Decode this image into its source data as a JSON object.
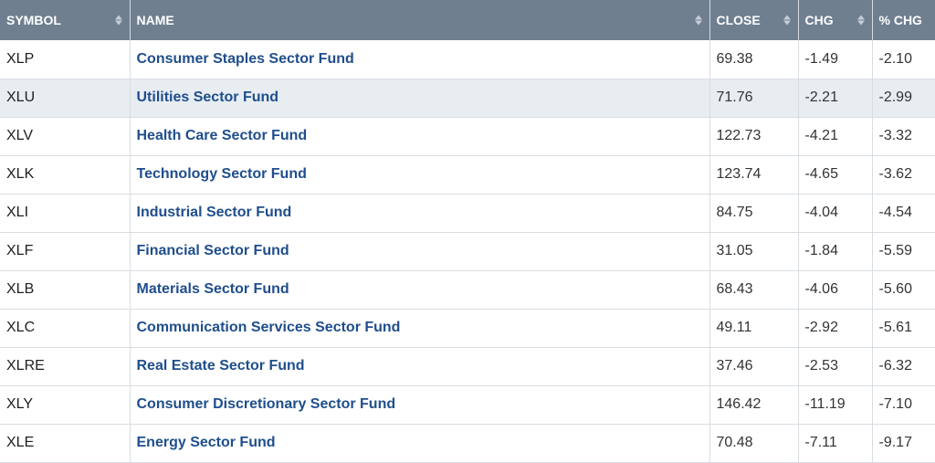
{
  "header": {
    "symbol": "SYMBOL",
    "name": "NAME",
    "close": "CLOSE",
    "chg": "CHG",
    "pct_chg": "% CHG"
  },
  "rows": [
    {
      "symbol": "XLP",
      "name": "Consumer Staples Sector Fund",
      "close": "69.38",
      "chg": "-1.49",
      "pct_chg": "-2.10"
    },
    {
      "symbol": "XLU",
      "name": "Utilities Sector Fund",
      "close": "71.76",
      "chg": "-2.21",
      "pct_chg": "-2.99"
    },
    {
      "symbol": "XLV",
      "name": "Health Care Sector Fund",
      "close": "122.73",
      "chg": "-4.21",
      "pct_chg": "-3.32"
    },
    {
      "symbol": "XLK",
      "name": "Technology Sector Fund",
      "close": "123.74",
      "chg": "-4.65",
      "pct_chg": "-3.62"
    },
    {
      "symbol": "XLI",
      "name": "Industrial Sector Fund",
      "close": "84.75",
      "chg": "-4.04",
      "pct_chg": "-4.54"
    },
    {
      "symbol": "XLF",
      "name": "Financial Sector Fund",
      "close": "31.05",
      "chg": "-1.84",
      "pct_chg": "-5.59"
    },
    {
      "symbol": "XLB",
      "name": "Materials Sector Fund",
      "close": "68.43",
      "chg": "-4.06",
      "pct_chg": "-5.60"
    },
    {
      "symbol": "XLC",
      "name": "Communication Services Sector Fund",
      "close": "49.11",
      "chg": "-2.92",
      "pct_chg": "-5.61"
    },
    {
      "symbol": "XLRE",
      "name": "Real Estate Sector Fund",
      "close": "37.46",
      "chg": "-2.53",
      "pct_chg": "-6.32"
    },
    {
      "symbol": "XLY",
      "name": "Consumer Discretionary Sector Fund",
      "close": "146.42",
      "chg": "-11.19",
      "pct_chg": "-7.10"
    },
    {
      "symbol": "XLE",
      "name": "Energy Sector Fund",
      "close": "70.48",
      "chg": "-7.11",
      "pct_chg": "-9.17"
    }
  ],
  "highlighted_row": 1,
  "colors": {
    "header_bg": "#6f7f90",
    "link": "#1f4e8c",
    "row_highlight": "#e8edf2"
  }
}
